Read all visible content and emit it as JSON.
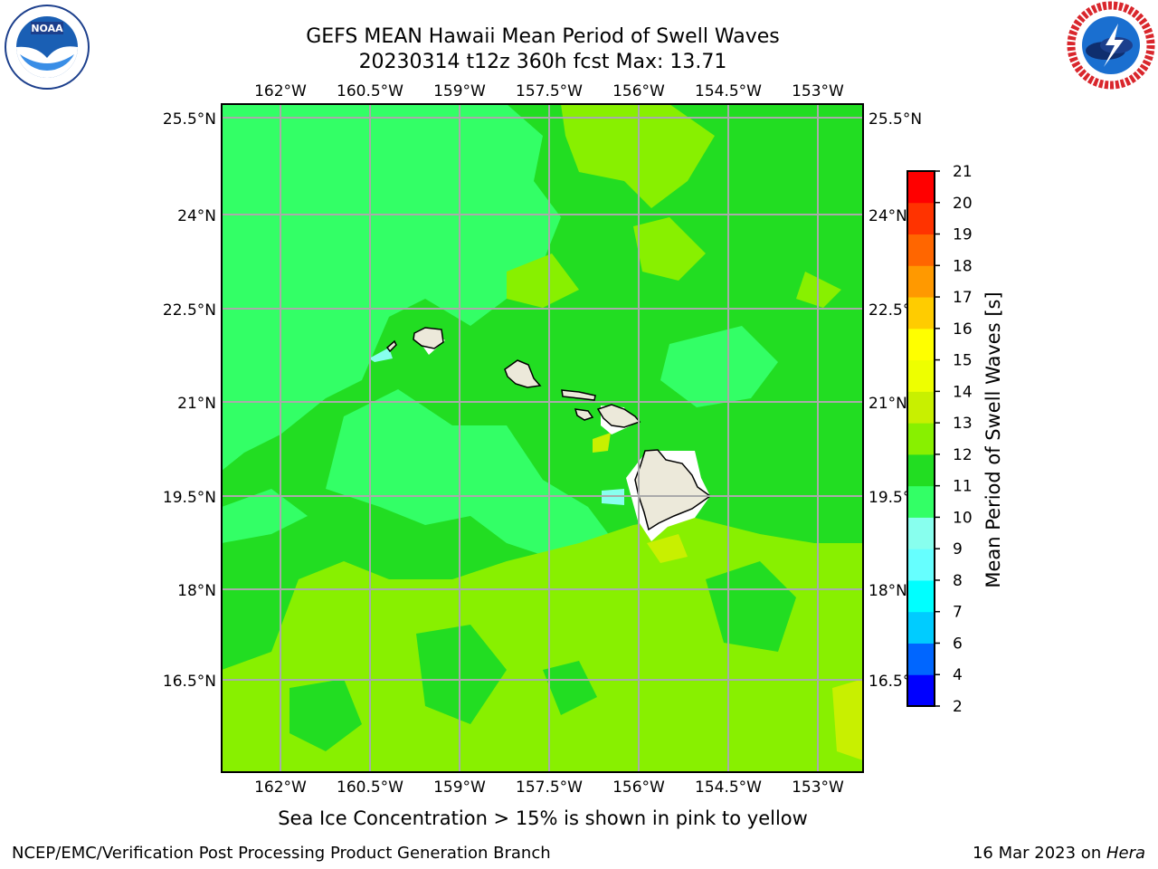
{
  "header": {
    "title_line1": "GEFS MEAN Hawaii Mean Period of Swell Waves",
    "title_line2": "20230314 t12z 360h fcst   Max: 13.71"
  },
  "logos": {
    "left": "noaa-logo",
    "right": "national-weather-service-logo"
  },
  "map": {
    "lon_ticks": [
      "162°W",
      "160.5°W",
      "159°W",
      "157.5°W",
      "156°W",
      "154.5°W",
      "153°W"
    ],
    "lat_ticks": [
      "25.5°N",
      "24°N",
      "22.5°N",
      "21°N",
      "19.5°N",
      "18°N",
      "16.5°N"
    ],
    "fill_colors": {
      "band_10_11": "#33ff66",
      "band_11_12": "#22dd22",
      "band_12_13": "#88f000",
      "band_13_14": "#c8f000",
      "band_9_10": "#88ffee",
      "land": "#ece9da",
      "grid": "#aaaaaa"
    }
  },
  "colorbar": {
    "label": "Mean Period of Swell Waves [s]",
    "ticks": [
      "2",
      "4",
      "6",
      "7",
      "8",
      "9",
      "10",
      "11",
      "12",
      "13",
      "14",
      "15",
      "16",
      "17",
      "18",
      "19",
      "20",
      "21"
    ],
    "colors": [
      "#0000ff",
      "#0066ff",
      "#00ccff",
      "#00ffff",
      "#66ffff",
      "#88ffee",
      "#33ff66",
      "#22dd22",
      "#88f000",
      "#c8f000",
      "#eeff00",
      "#ffff00",
      "#ffcc00",
      "#ff9900",
      "#ff6600",
      "#ff3300",
      "#ff0000"
    ]
  },
  "footer": {
    "note": "Sea Ice Concentration > 15% is shown in pink to yellow",
    "credit": "NCEP/EMC/Verification Post Processing Product Generation Branch",
    "date": "16 Mar 2023 on ",
    "machine": "Hera"
  }
}
